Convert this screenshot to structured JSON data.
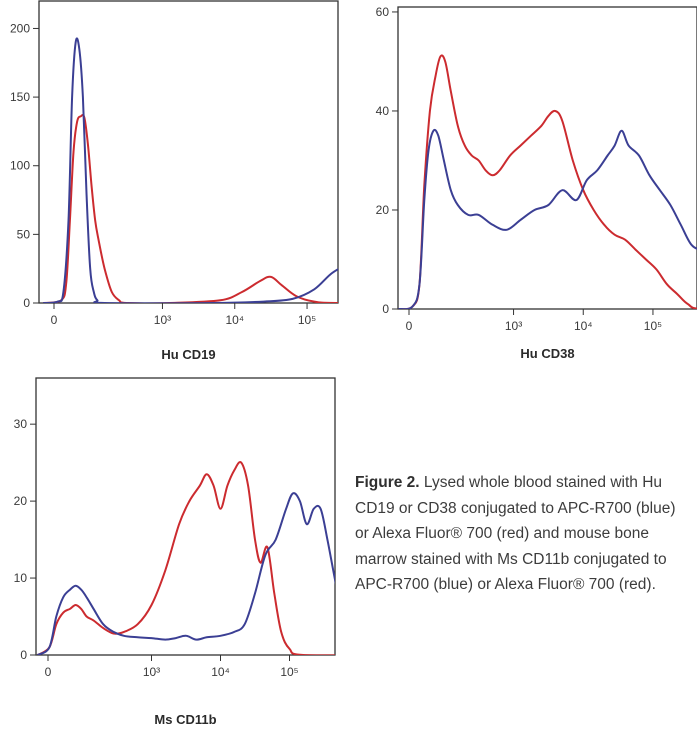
{
  "colors": {
    "blue": "#3b3f94",
    "red": "#cc2b2f",
    "frame": "#333333"
  },
  "caption": {
    "lead": "Figure 2.",
    "text": " Lysed whole blood stained with Hu CD19 or CD38 conjugated to APC-R700 (blue) or Alexa Fluor® 700 (red) and mouse bone marrow stained with Ms CD11b conjugated to APC-R700 (blue) or Alexa Fluor® 700 (red)."
  },
  "chart_data": [
    {
      "type": "line",
      "id": "hu-cd19",
      "xlabel": "Hu CD19",
      "ylabel": "",
      "x_scale": "biexponential",
      "x_ticks": [
        "0",
        "10³",
        "10⁴",
        "10⁵"
      ],
      "y_ticks": [
        "0",
        "50",
        "100",
        "150",
        "200"
      ],
      "ylim": [
        0,
        220
      ],
      "series": [
        {
          "color": "blue",
          "points": [
            [
              -0.15,
              0
            ],
            [
              0.05,
              1
            ],
            [
              0.13,
              8
            ],
            [
              0.2,
              60
            ],
            [
              0.25,
              150
            ],
            [
              0.3,
              190
            ],
            [
              0.35,
              185
            ],
            [
              0.4,
              150
            ],
            [
              0.45,
              80
            ],
            [
              0.5,
              25
            ],
            [
              0.55,
              8
            ],
            [
              0.6,
              2
            ],
            [
              0.7,
              0
            ],
            [
              2.2,
              0
            ],
            [
              2.9,
              1
            ],
            [
              3.3,
              3
            ],
            [
              3.6,
              10
            ],
            [
              3.85,
              22
            ],
            [
              4.05,
              26
            ],
            [
              4.25,
              18
            ],
            [
              4.45,
              6
            ],
            [
              4.65,
              1
            ],
            [
              4.85,
              0
            ]
          ]
        },
        {
          "color": "red",
          "points": [
            [
              -0.15,
              0
            ],
            [
              0.1,
              2
            ],
            [
              0.17,
              15
            ],
            [
              0.22,
              60
            ],
            [
              0.27,
              110
            ],
            [
              0.32,
              132
            ],
            [
              0.37,
              136
            ],
            [
              0.42,
              135
            ],
            [
              0.47,
              115
            ],
            [
              0.52,
              85
            ],
            [
              0.57,
              60
            ],
            [
              0.62,
              45
            ],
            [
              0.7,
              25
            ],
            [
              0.8,
              8
            ],
            [
              0.9,
              2
            ],
            [
              1.0,
              0
            ],
            [
              1.6,
              0
            ],
            [
              2.3,
              2
            ],
            [
              2.6,
              8
            ],
            [
              2.85,
              16
            ],
            [
              3.0,
              19
            ],
            [
              3.15,
              13
            ],
            [
              3.35,
              5
            ],
            [
              3.6,
              1
            ],
            [
              3.9,
              0
            ],
            [
              4.85,
              0
            ]
          ]
        }
      ]
    },
    {
      "type": "line",
      "id": "hu-cd38",
      "xlabel": "Hu CD38",
      "ylabel": "",
      "x_scale": "biexponential",
      "x_ticks": [
        "0",
        "10³",
        "10⁴",
        "10⁵"
      ],
      "y_ticks": [
        "0",
        "20",
        "40",
        "60"
      ],
      "ylim": [
        0,
        61
      ],
      "series": [
        {
          "color": "blue",
          "points": [
            [
              -0.15,
              0
            ],
            [
              0.05,
              0.5
            ],
            [
              0.15,
              5
            ],
            [
              0.22,
              22
            ],
            [
              0.28,
              32
            ],
            [
              0.35,
              36
            ],
            [
              0.42,
              35
            ],
            [
              0.5,
              30
            ],
            [
              0.6,
              24
            ],
            [
              0.7,
              21
            ],
            [
              0.85,
              19
            ],
            [
              1.0,
              19
            ],
            [
              1.2,
              17
            ],
            [
              1.4,
              16
            ],
            [
              1.6,
              18
            ],
            [
              1.8,
              20
            ],
            [
              2.0,
              21
            ],
            [
              2.2,
              24
            ],
            [
              2.4,
              22
            ],
            [
              2.55,
              26
            ],
            [
              2.7,
              28
            ],
            [
              2.85,
              31
            ],
            [
              2.95,
              33
            ],
            [
              3.05,
              36
            ],
            [
              3.15,
              33
            ],
            [
              3.3,
              31
            ],
            [
              3.45,
              27
            ],
            [
              3.6,
              24
            ],
            [
              3.75,
              21
            ],
            [
              3.9,
              17
            ],
            [
              4.05,
              13
            ],
            [
              4.2,
              12
            ],
            [
              4.35,
              13
            ],
            [
              4.5,
              10
            ],
            [
              4.65,
              7
            ],
            [
              4.8,
              4
            ],
            [
              4.95,
              1.5
            ],
            [
              5.1,
              0.5
            ]
          ]
        },
        {
          "color": "red",
          "points": [
            [
              -0.15,
              0
            ],
            [
              0.05,
              0.5
            ],
            [
              0.15,
              5
            ],
            [
              0.22,
              25
            ],
            [
              0.3,
              40
            ],
            [
              0.38,
              47
            ],
            [
              0.45,
              51
            ],
            [
              0.52,
              50
            ],
            [
              0.6,
              44
            ],
            [
              0.7,
              37
            ],
            [
              0.8,
              33
            ],
            [
              0.9,
              31
            ],
            [
              1.0,
              30
            ],
            [
              1.1,
              28
            ],
            [
              1.2,
              27
            ],
            [
              1.3,
              28
            ],
            [
              1.45,
              31
            ],
            [
              1.6,
              33
            ],
            [
              1.75,
              35
            ],
            [
              1.9,
              37
            ],
            [
              2.0,
              39
            ],
            [
              2.1,
              40
            ],
            [
              2.2,
              38
            ],
            [
              2.35,
              30
            ],
            [
              2.5,
              24
            ],
            [
              2.65,
              20
            ],
            [
              2.8,
              17
            ],
            [
              2.95,
              15
            ],
            [
              3.1,
              14
            ],
            [
              3.25,
              12
            ],
            [
              3.4,
              10
            ],
            [
              3.55,
              8
            ],
            [
              3.7,
              5
            ],
            [
              3.85,
              3
            ],
            [
              4.0,
              1
            ],
            [
              4.2,
              0
            ],
            [
              5.1,
              0
            ]
          ]
        }
      ]
    },
    {
      "type": "line",
      "id": "ms-cd11b",
      "xlabel": "Ms CD11b",
      "ylabel": "",
      "x_scale": "biexponential",
      "x_ticks": [
        "0",
        "10³",
        "10⁴",
        "10⁵"
      ],
      "y_ticks": [
        "0",
        "10",
        "20",
        "30"
      ],
      "ylim": [
        0,
        36
      ],
      "series": [
        {
          "color": "blue",
          "points": [
            [
              -0.15,
              0
            ],
            [
              0.02,
              1
            ],
            [
              0.12,
              5
            ],
            [
              0.22,
              7.5
            ],
            [
              0.32,
              8.5
            ],
            [
              0.4,
              9
            ],
            [
              0.48,
              8.5
            ],
            [
              0.56,
              7.5
            ],
            [
              0.66,
              6
            ],
            [
              0.8,
              4
            ],
            [
              0.95,
              3
            ],
            [
              1.1,
              2.5
            ],
            [
              1.3,
              2.3
            ],
            [
              1.5,
              2.2
            ],
            [
              1.7,
              2
            ],
            [
              1.85,
              2.2
            ],
            [
              2.0,
              2.5
            ],
            [
              2.15,
              2
            ],
            [
              2.3,
              2.3
            ],
            [
              2.5,
              2.5
            ],
            [
              2.7,
              3
            ],
            [
              2.85,
              4
            ],
            [
              3.0,
              8
            ],
            [
              3.15,
              13
            ],
            [
              3.3,
              15
            ],
            [
              3.45,
              19
            ],
            [
              3.55,
              21
            ],
            [
              3.65,
              20
            ],
            [
              3.75,
              17
            ],
            [
              3.85,
              19
            ],
            [
              3.95,
              19
            ],
            [
              4.05,
              15
            ],
            [
              4.2,
              8
            ],
            [
              4.35,
              3
            ],
            [
              4.5,
              1
            ],
            [
              4.7,
              0
            ],
            [
              4.85,
              0
            ]
          ]
        },
        {
          "color": "red",
          "points": [
            [
              -0.15,
              0
            ],
            [
              0.02,
              1
            ],
            [
              0.12,
              4
            ],
            [
              0.22,
              5.5
            ],
            [
              0.32,
              6
            ],
            [
              0.4,
              6.5
            ],
            [
              0.48,
              6
            ],
            [
              0.56,
              5
            ],
            [
              0.66,
              4.5
            ],
            [
              0.8,
              3.5
            ],
            [
              0.95,
              2.8
            ],
            [
              1.1,
              3
            ],
            [
              1.3,
              4
            ],
            [
              1.5,
              6.5
            ],
            [
              1.7,
              11
            ],
            [
              1.9,
              17
            ],
            [
              2.05,
              20
            ],
            [
              2.2,
              22
            ],
            [
              2.3,
              23.5
            ],
            [
              2.4,
              22
            ],
            [
              2.5,
              19
            ],
            [
              2.6,
              22
            ],
            [
              2.7,
              24
            ],
            [
              2.8,
              25
            ],
            [
              2.9,
              22
            ],
            [
              3.0,
              15
            ],
            [
              3.08,
              12
            ],
            [
              3.18,
              14
            ],
            [
              3.28,
              8
            ],
            [
              3.38,
              3
            ],
            [
              3.5,
              0.8
            ],
            [
              3.7,
              0
            ],
            [
              4.85,
              0
            ]
          ]
        }
      ]
    }
  ]
}
